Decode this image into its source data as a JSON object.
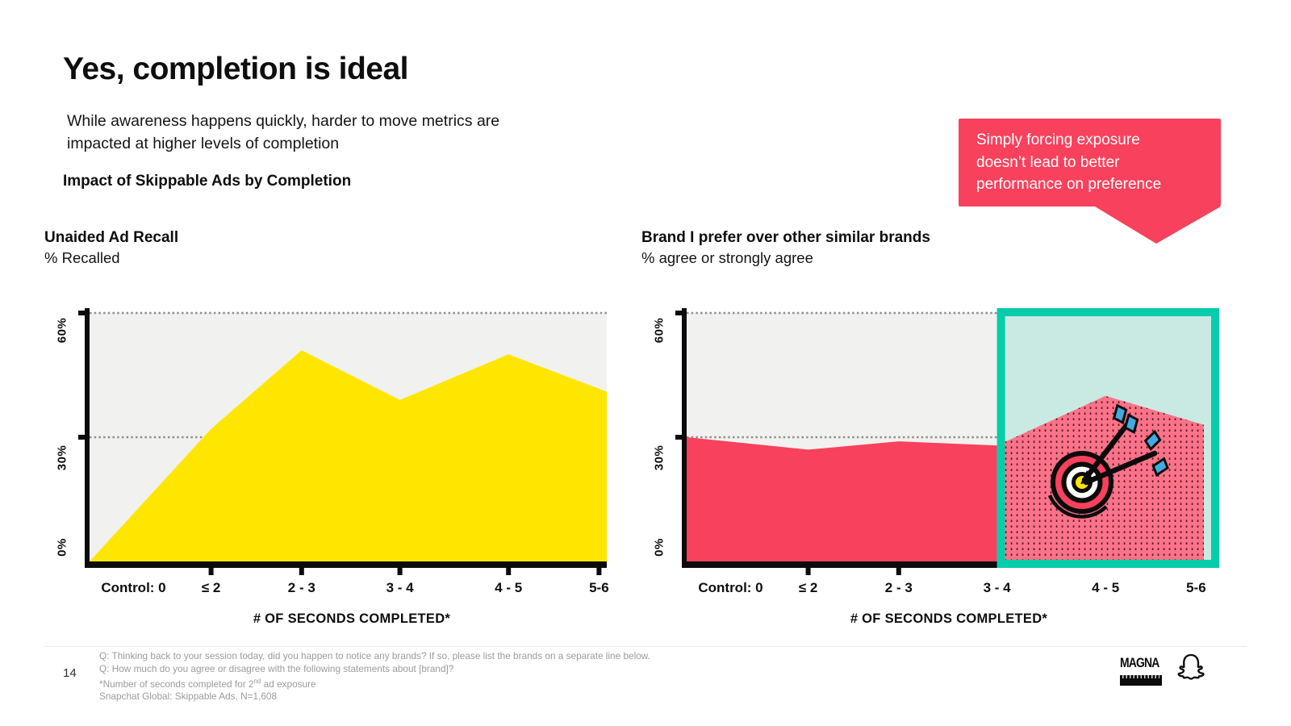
{
  "slide": {
    "title": "Yes, completion is ideal",
    "subtitle": "While awareness happens quickly, harder to move metrics are impacted at higher levels of completion",
    "section_label": "Impact of Skippable Ads by Completion",
    "page_number": "14"
  },
  "callout": {
    "text": "Simply forcing exposure doesn’t lead to better performance on preference",
    "bg_color": "#F8415C",
    "text_color": "#ffffff"
  },
  "chart_data": [
    {
      "type": "area",
      "title": "Unaided Ad Recall",
      "subtitle": "% Recalled",
      "categories": [
        "Control: 0",
        "≤ 2",
        "2 - 3",
        "3 - 4",
        "4 - 5",
        "5-6"
      ],
      "values": [
        0,
        32,
        51,
        39,
        50,
        41
      ],
      "xlabel": "# OF SECONDS COMPLETED*",
      "ylabel": "% Recalled",
      "ylim": [
        0,
        60
      ],
      "yticks": [
        "0%",
        "30%",
        "60%"
      ],
      "gridlines": [
        30,
        60
      ],
      "grid_style": "dotted",
      "color": "#FFE600",
      "plot_bg": "#F1F1F0"
    },
    {
      "type": "area",
      "title": "Brand I prefer over other similar brands",
      "subtitle": "% agree or strongly agree",
      "categories": [
        "Control: 0",
        "≤ 2",
        "2 - 3",
        "3 - 4",
        "4 - 5",
        "5-6"
      ],
      "values": [
        30,
        27,
        29,
        28,
        40,
        33
      ],
      "xlabel": "# OF SECONDS COMPLETED*",
      "ylabel": "% agree or strongly agree",
      "ylim": [
        0,
        60
      ],
      "yticks": [
        "0%",
        "30%",
        "60%"
      ],
      "gridlines": [
        30,
        60
      ],
      "grid_style": "dotted",
      "color": "#F8415C",
      "plot_bg": "#F1F1F0",
      "highlight": {
        "from_category": "3 - 4",
        "to_category": "5-6",
        "border_color": "#07CDAA",
        "fill_color": "#C9EAE3",
        "area_pattern_color": "#FB7389",
        "icon": "target-with-arrows"
      }
    }
  ],
  "footnotes": {
    "line1": "Q: Thinking back to your session today, did you happen to notice any brands? If so, please list the brands on a separate line below.",
    "line2": "Q: How much do you agree or disagree with the following statements about [brand]?",
    "line3_pre": "*Number of seconds completed for 2",
    "line3_sup": "nd",
    "line3_post": " ad exposure",
    "line4": "Snapchat Global: Skippable Ads, N=1,608"
  },
  "logos": {
    "magna_label": "MAGNA",
    "snapchat_icon": "snapchat-ghost"
  },
  "colors": {
    "pink": "#F8415C",
    "yellow": "#FFE600",
    "teal": "#07CDAA",
    "mint": "#C9EAE3",
    "plot_gray": "#F1F1F0",
    "gridline": "#8E8E8E",
    "footnote_gray": "#9B9B9B"
  }
}
